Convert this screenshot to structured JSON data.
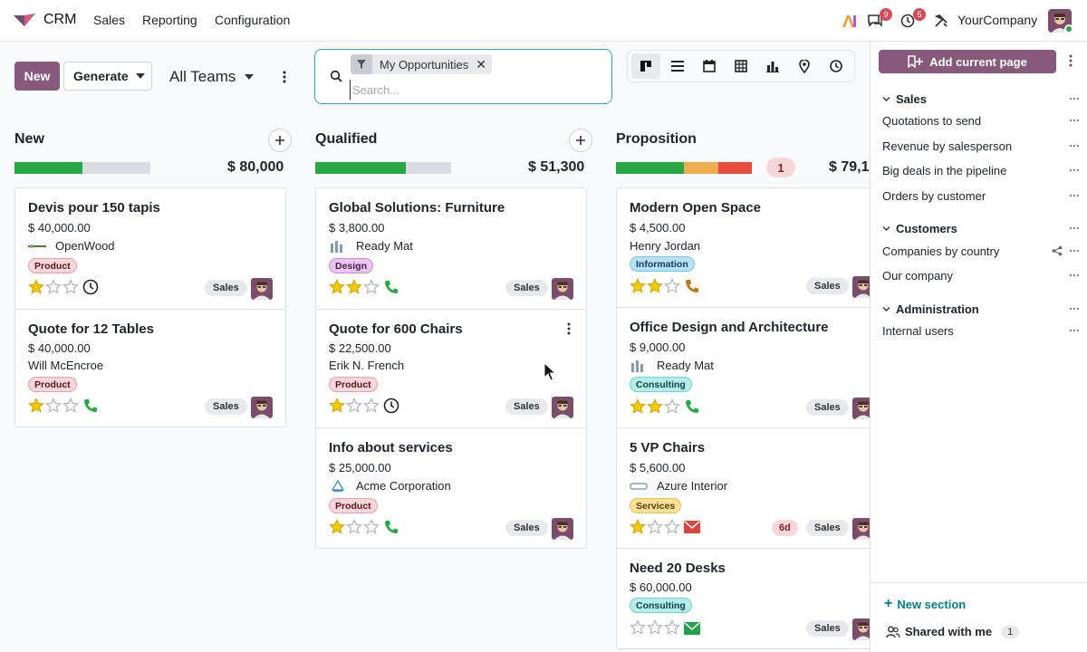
{
  "navbar": {
    "app_name": "CRM",
    "menus": [
      "Sales",
      "Reporting",
      "Configuration"
    ],
    "messages_count": "9",
    "activities_count": "5",
    "company": "YourCompany",
    "icons": [
      "apps-logo-icon",
      "ai-icon",
      "chat-icon",
      "clock-icon",
      "tools-icon"
    ]
  },
  "control": {
    "new_label": "New",
    "generate_label": "Generate",
    "teams_label": "All Teams",
    "search_facet": "My Opportunities",
    "search_placeholder": "Search...",
    "views": [
      "kanban",
      "list",
      "calendar",
      "pivot",
      "graph",
      "map",
      "activity"
    ]
  },
  "columns": [
    {
      "title": "New",
      "total": "$ 80,000",
      "progress": {
        "green": 0.5,
        "orange": 0,
        "red": 0
      },
      "count": "",
      "cards": [
        {
          "title": "Devis pour 150 tapis",
          "amount": "$ 40,000.00",
          "partner": "OpenWood",
          "tag": "Product",
          "stars": 1,
          "activity": "clock",
          "overdue": "",
          "team": "Sales"
        },
        {
          "title": "Quote for 12 Tables",
          "amount": "$ 40,000.00",
          "partner": "Will McEncroe",
          "tag": "Product",
          "stars": 1,
          "activity": "phone",
          "overdue": "",
          "team": "Sales"
        }
      ]
    },
    {
      "title": "Qualified",
      "total": "$ 51,300",
      "progress": {
        "green": 0.67,
        "orange": 0,
        "red": 0
      },
      "count": "",
      "cards": [
        {
          "title": "Global Solutions: Furniture",
          "amount": "$ 3,800.00",
          "partner": "Ready Mat",
          "tag": "Design",
          "stars": 2,
          "activity": "phone",
          "overdue": "",
          "team": "Sales"
        },
        {
          "title": "Quote for 600 Chairs",
          "amount": "$ 22,500.00",
          "partner": "Erik N. French",
          "tag": "Product",
          "stars": 1,
          "activity": "clock",
          "overdue": "",
          "team": "Sales"
        },
        {
          "title": "Info about services",
          "amount": "$ 25,000.00",
          "partner": "Acme Corporation",
          "tag": "Product",
          "stars": 1,
          "activity": "phone",
          "overdue": "",
          "team": "Sales"
        }
      ]
    },
    {
      "title": "Proposition",
      "total": "$ 79,1",
      "progress": {
        "green": 0.5,
        "orange": 0.25,
        "red": 0.25
      },
      "count": "1",
      "cards": [
        {
          "title": "Modern Open Space",
          "amount": "$ 4,500.00",
          "partner": "Henry Jordan",
          "tag": "Information",
          "stars": 2,
          "activity": "phone-warning",
          "overdue": "",
          "team": "Sales"
        },
        {
          "title": "Office Design and Architecture",
          "amount": "$ 9,000.00",
          "partner": "Ready Mat",
          "tag": "Consulting",
          "stars": 2,
          "activity": "phone",
          "overdue": "",
          "team": "Sales"
        },
        {
          "title": "5 VP Chairs",
          "amount": "$ 5,600.00",
          "partner": "Azure Interior",
          "tag": "Services",
          "stars": 1,
          "activity": "email-red",
          "overdue": "6d",
          "team": "Sales"
        },
        {
          "title": "Need 20 Desks",
          "amount": "$ 60,000.00",
          "partner": "",
          "tag": "Consulting",
          "stars": 0,
          "activity": "email-green",
          "overdue": "",
          "team": "Sales"
        }
      ]
    }
  ],
  "side_panel": {
    "add_page_label": "Add current page",
    "sections": [
      {
        "title": "Sales",
        "items": [
          "Quotations to send",
          "Revenue by salesperson",
          "Big deals in the pipeline",
          "Orders by customer"
        ]
      },
      {
        "title": "Customers",
        "items": [
          "Companies by country",
          "Our company"
        ]
      },
      {
        "title": "Administration",
        "items": [
          "Internal users"
        ]
      }
    ],
    "new_section_label": "New section",
    "shared_label": "Shared with me",
    "shared_count": "1"
  },
  "colors": {
    "brand": "#875a7b",
    "green": "#28a745",
    "orange": "#f0ad4e",
    "red": "#e74c3c",
    "teal": "#017e84"
  }
}
